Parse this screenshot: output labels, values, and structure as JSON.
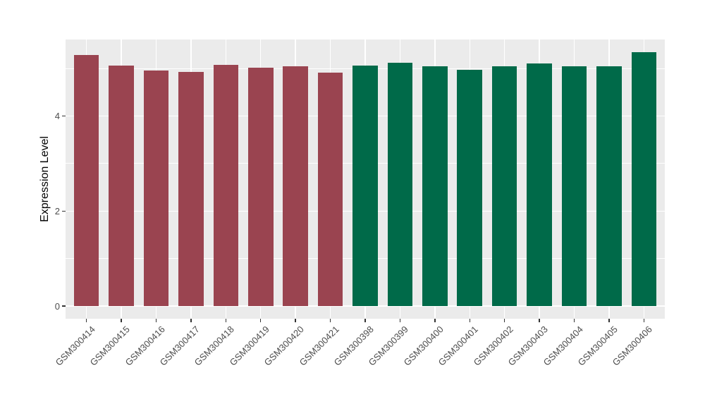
{
  "figure": {
    "kind": "ggplot-style static bar chart",
    "background_color": "#FFFFFF",
    "panel_background_color": "#EBEBEB",
    "gridline_color": "#FFFFFF",
    "axis_text_color": "#4D4D4D",
    "axis_title_color": "#000000",
    "tick_mark_color": "#333333"
  },
  "chart_data": {
    "type": "bar",
    "title": "",
    "xlabel": "",
    "ylabel": "Expression Level",
    "categories": [
      "GSM300414",
      "GSM300415",
      "GSM300416",
      "GSM300417",
      "GSM300418",
      "GSM300419",
      "GSM300420",
      "GSM300421",
      "GSM300398",
      "GSM300399",
      "GSM300400",
      "GSM300401",
      "GSM300402",
      "GSM300403",
      "GSM300404",
      "GSM300405",
      "GSM300406"
    ],
    "values": [
      5.28,
      5.06,
      4.96,
      4.93,
      5.07,
      5.01,
      5.04,
      4.91,
      5.06,
      5.12,
      5.04,
      4.97,
      5.04,
      5.1,
      5.04,
      5.04,
      5.34
    ],
    "bar_colors": [
      "#9A4450",
      "#9A4450",
      "#9A4450",
      "#9A4450",
      "#9A4450",
      "#9A4450",
      "#9A4450",
      "#9A4450",
      "#006A49",
      "#006A49",
      "#006A49",
      "#006A49",
      "#006A49",
      "#006A49",
      "#006A49",
      "#006A49",
      "#006A49"
    ],
    "color_groups": [
      {
        "color": "#9A4450",
        "samples": [
          "GSM300414",
          "GSM300415",
          "GSM300416",
          "GSM300417",
          "GSM300418",
          "GSM300419",
          "GSM300420",
          "GSM300421"
        ]
      },
      {
        "color": "#006A49",
        "samples": [
          "GSM300398",
          "GSM300399",
          "GSM300400",
          "GSM300401",
          "GSM300402",
          "GSM300403",
          "GSM300404",
          "GSM300405",
          "GSM300406"
        ]
      }
    ],
    "yticks": [
      0,
      2,
      4
    ],
    "minor_yticks": [
      1,
      3,
      5
    ],
    "ylim": [
      -0.27,
      5.61
    ],
    "x_tick_rotation_deg": 45,
    "grid": true,
    "legend_position": "none"
  }
}
